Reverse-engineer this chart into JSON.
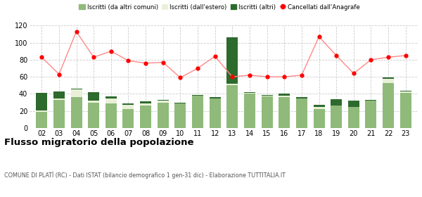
{
  "years": [
    "02",
    "03",
    "04",
    "05",
    "06",
    "07",
    "08",
    "09",
    "10",
    "11",
    "12",
    "13",
    "14",
    "15",
    "16",
    "17",
    "18",
    "19",
    "20",
    "21",
    "22",
    "23"
  ],
  "iscritti_altri_comuni": [
    19,
    33,
    36,
    30,
    29,
    22,
    26,
    30,
    29,
    38,
    35,
    50,
    40,
    37,
    36,
    35,
    22,
    26,
    25,
    32,
    53,
    41
  ],
  "iscritti_estero": [
    2,
    2,
    9,
    2,
    6,
    5,
    3,
    2,
    0,
    0,
    0,
    2,
    1,
    1,
    2,
    0,
    3,
    0,
    0,
    0,
    5,
    2
  ],
  "iscritti_altri": [
    20,
    8,
    1,
    10,
    2,
    2,
    2,
    1,
    1,
    1,
    1,
    54,
    1,
    1,
    2,
    1,
    2,
    8,
    7,
    1,
    1,
    1
  ],
  "cancellati": [
    83,
    63,
    113,
    83,
    90,
    79,
    76,
    77,
    59,
    70,
    84,
    60,
    62,
    60,
    60,
    62,
    107,
    85,
    64,
    80,
    83,
    85
  ],
  "colors": {
    "iscritti_altri_comuni": "#8fba7a",
    "iscritti_estero": "#e8f0d8",
    "iscritti_altri": "#2d6a2d",
    "cancellati_line": "#ff8888",
    "cancellati_dot": "#ff0000",
    "grid": "#cccccc",
    "background": "#ffffff"
  },
  "legend": {
    "iscritti_altri_comuni": "Iscritti (da altri comuni)",
    "iscritti_estero": "Iscritti (dall'estero)",
    "iscritti_altri": "Iscritti (altri)",
    "cancellati": "Cancellati dall'Anagrafe"
  },
  "title": "Flusso migratorio della popolazione",
  "subtitle": "COMUNE DI PLATÌ (RC) - Dati ISTAT (bilancio demografico 1 gen-31 dic) - Elaborazione TUTTITALIA.IT",
  "ylim": [
    0,
    120
  ],
  "yticks": [
    0,
    20,
    40,
    60,
    80,
    100,
    120
  ]
}
